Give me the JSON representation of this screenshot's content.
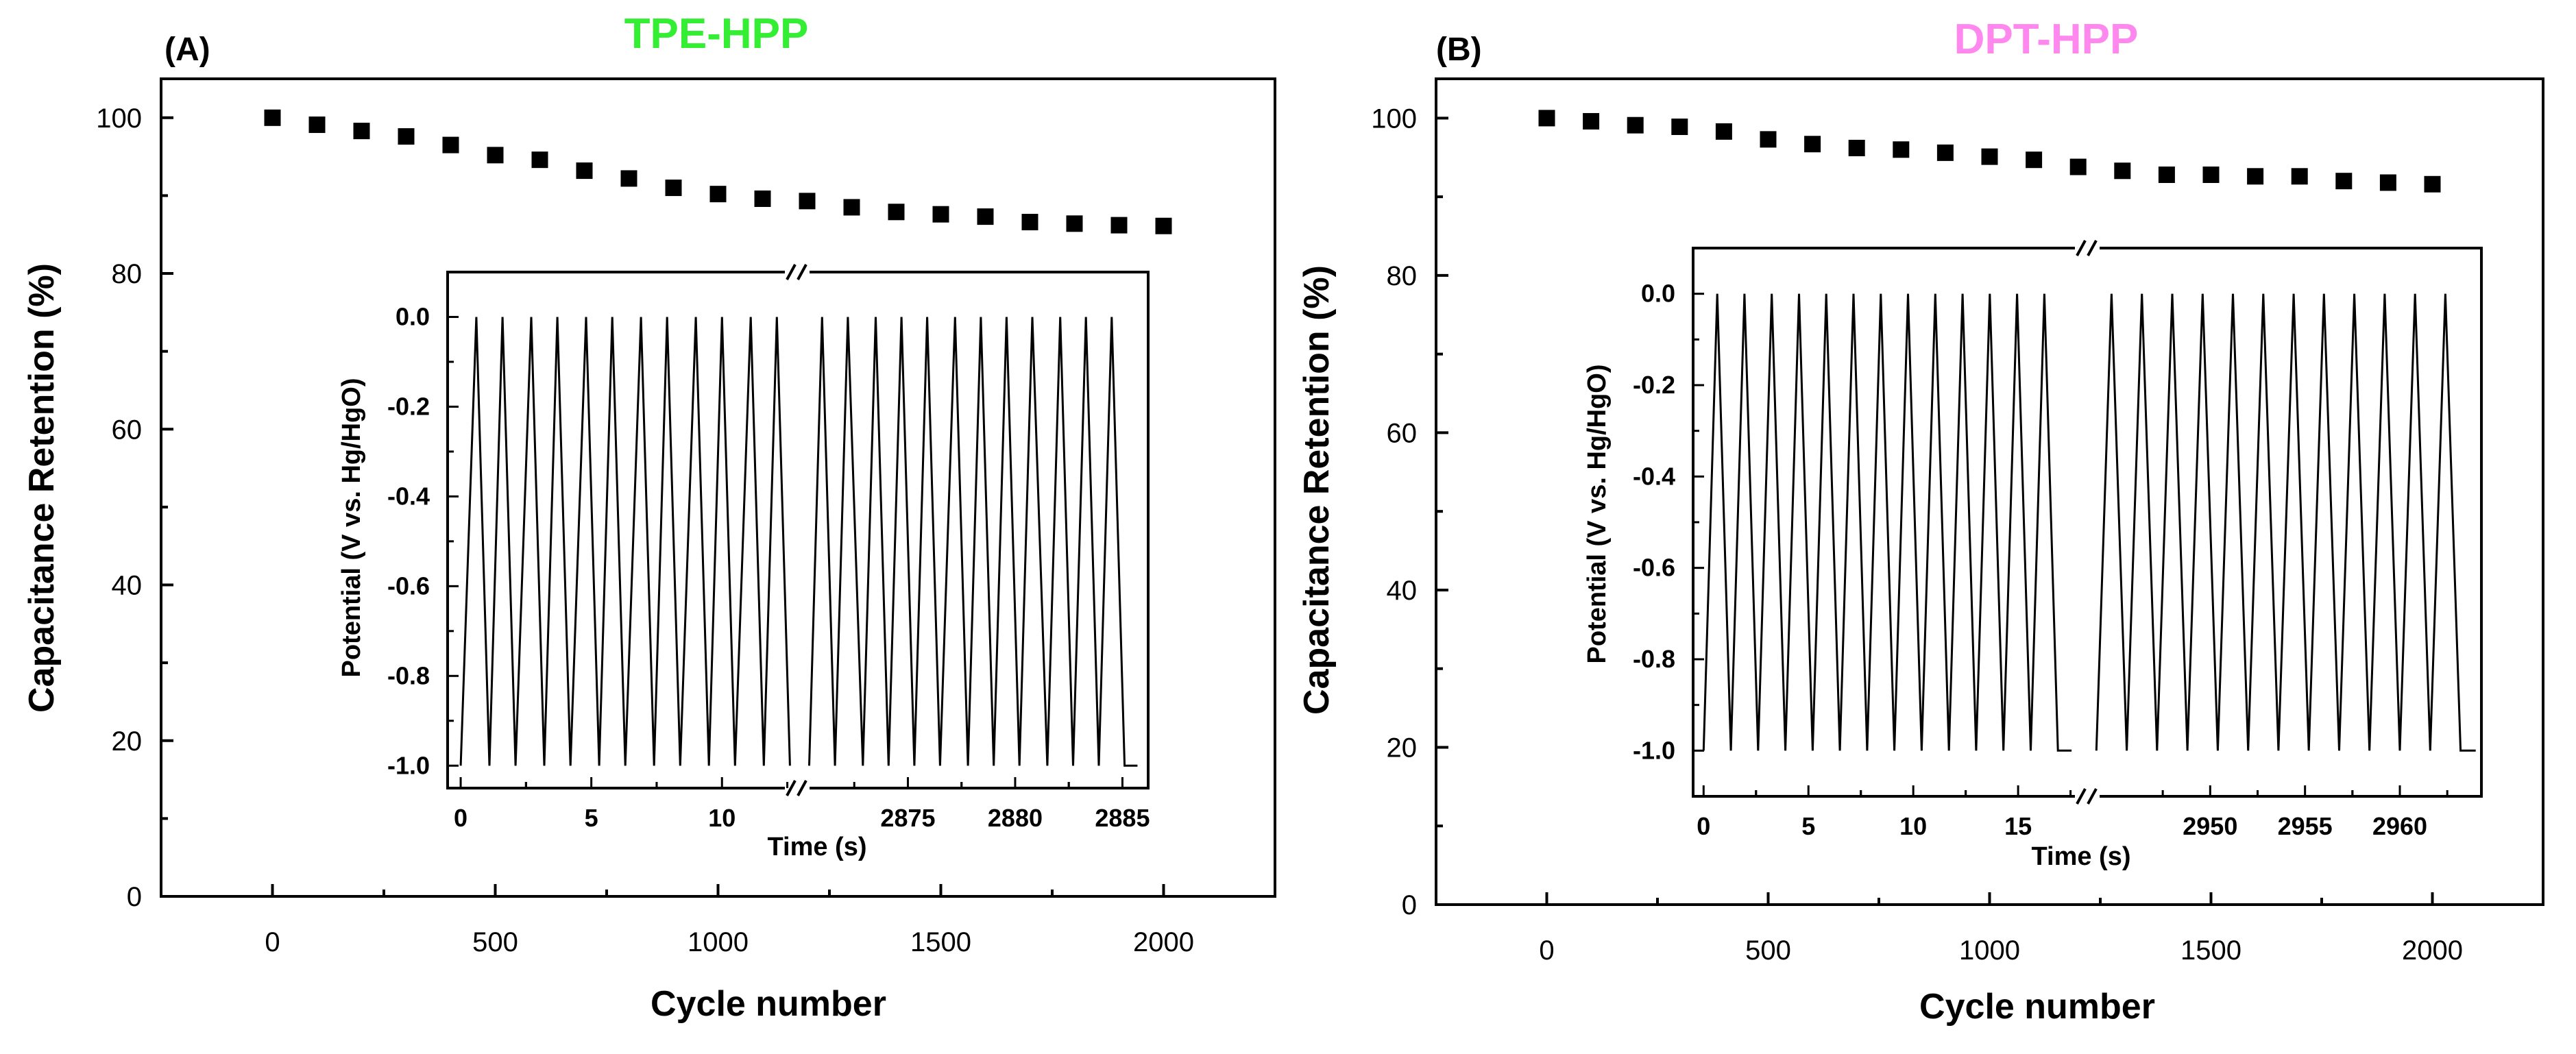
{
  "chart_data": [
    {
      "panel_label": "(A)",
      "type": "scatter",
      "title": "TPE-HPP",
      "title_color": "#33ee33",
      "xlabel": "Cycle number",
      "ylabel": "Capacitance Retention (%)",
      "xlim": [
        -250,
        2250
      ],
      "ylim": [
        0,
        105
      ],
      "xticks": [
        0,
        500,
        1000,
        1500,
        2000
      ],
      "xtick_labels": [
        "0",
        "500",
        "1000",
        "1500",
        "2000"
      ],
      "yticks": [
        0,
        20,
        40,
        60,
        80,
        100
      ],
      "ytick_labels": [
        "0",
        "20",
        "40",
        "60",
        "80",
        "100"
      ],
      "marker_color": "#000000",
      "x": [
        0,
        100,
        200,
        300,
        400,
        500,
        600,
        700,
        800,
        900,
        1000,
        1100,
        1200,
        1300,
        1400,
        1500,
        1600,
        1700,
        1800,
        1900,
        2000
      ],
      "y": [
        100.0,
        99.1,
        98.3,
        97.6,
        96.5,
        95.2,
        94.6,
        93.2,
        92.2,
        91.0,
        90.2,
        89.6,
        89.3,
        88.5,
        87.9,
        87.6,
        87.3,
        86.6,
        86.4,
        86.2,
        86.1
      ],
      "inset": {
        "type": "line",
        "xlabel": "Time (s)",
        "ylabel": "Potential (V vs. Hg/HgO)",
        "ylim": [
          -1.05,
          0.1
        ],
        "yticks": [
          0.0,
          -0.2,
          -0.4,
          -0.6,
          -0.8,
          -1.0
        ],
        "ytick_labels": [
          "0.0",
          "-0.2",
          "-0.4",
          "-0.6",
          "-0.8",
          "-1.0"
        ],
        "break_symbol": "//",
        "segments": [
          {
            "xlim": [
              -0.5,
              12.8
            ],
            "xticks": [
              0,
              5,
              10
            ],
            "xtick_labels": [
              "0",
              "5",
              "10"
            ],
            "x": [
              0,
              0.6,
              1.1,
              1.6,
              2.1,
              2.7,
              3.2,
              3.7,
              4.2,
              4.8,
              5.3,
              5.8,
              6.3,
              6.9,
              7.4,
              7.9,
              8.4,
              9.0,
              9.5,
              10.0,
              10.5,
              11.1,
              11.6,
              12.1,
              12.6
            ],
            "y": [
              -1.0,
              0.0,
              -1.0,
              0.0,
              -1.0,
              0.0,
              -1.0,
              0.0,
              -1.0,
              0.0,
              -1.0,
              0.0,
              -1.0,
              0.0,
              -1.0,
              0.0,
              -1.0,
              0.0,
              -1.0,
              0.0,
              -1.0,
              0.0,
              -1.0,
              0.0,
              -1.0
            ]
          },
          {
            "xlim": [
              2870.0,
              2886.2
            ],
            "xticks": [
              2875,
              2880,
              2885
            ],
            "xtick_labels": [
              "2875",
              "2880",
              "2885"
            ],
            "x": [
              2870.4,
              2871.0,
              2871.6,
              2872.2,
              2872.9,
              2873.5,
              2874.1,
              2874.7,
              2875.3,
              2875.9,
              2876.5,
              2877.2,
              2877.8,
              2878.4,
              2879.0,
              2879.6,
              2880.2,
              2880.8,
              2881.5,
              2882.1,
              2882.7,
              2883.3,
              2883.9,
              2884.5,
              2885.1,
              2885.7
            ],
            "y": [
              -1.0,
              0.0,
              -1.0,
              0.0,
              -1.0,
              0.0,
              -1.0,
              0.0,
              -1.0,
              0.0,
              -1.0,
              0.0,
              -1.0,
              0.0,
              -1.0,
              0.0,
              -1.0,
              0.0,
              -1.0,
              0.0,
              -1.0,
              0.0,
              -1.0,
              0.0,
              -1.0,
              -1.0
            ]
          }
        ]
      }
    },
    {
      "panel_label": "(B)",
      "type": "scatter",
      "title": "DPT-HPP",
      "title_color": "#ff88ee",
      "xlabel": "Cycle number",
      "ylabel": "Capacitance Retention (%)",
      "xlim": [
        -250,
        2250
      ],
      "ylim": [
        0,
        105
      ],
      "xticks": [
        0,
        500,
        1000,
        1500,
        2000
      ],
      "xtick_labels": [
        "0",
        "500",
        "1000",
        "1500",
        "2000"
      ],
      "yticks": [
        0,
        20,
        40,
        60,
        80,
        100
      ],
      "ytick_labels": [
        "0",
        "20",
        "40",
        "60",
        "80",
        "100"
      ],
      "marker_color": "#000000",
      "x": [
        0,
        100,
        200,
        300,
        400,
        500,
        600,
        700,
        800,
        900,
        1000,
        1100,
        1200,
        1300,
        1400,
        1500,
        1600,
        1700,
        1800,
        1900,
        2000
      ],
      "y": [
        100.0,
        99.6,
        99.1,
        98.9,
        98.3,
        97.3,
        96.7,
        96.2,
        96.0,
        95.6,
        95.1,
        94.7,
        93.8,
        93.3,
        92.8,
        92.8,
        92.6,
        92.6,
        92.0,
        91.8,
        91.6
      ],
      "inset": {
        "type": "line",
        "xlabel": "Time (s)",
        "ylabel": "Potential (V vs. Hg/HgO)",
        "ylim": [
          -1.1,
          0.1
        ],
        "yticks": [
          0.0,
          -0.2,
          -0.4,
          -0.6,
          -0.8,
          -1.0
        ],
        "ytick_labels": [
          "0.0",
          "-0.2",
          "-0.4",
          "-0.6",
          "-0.8",
          "-1.0"
        ],
        "break_symbol": "//",
        "segments": [
          {
            "xlim": [
              -0.5,
              18.2
            ],
            "xticks": [
              0,
              5,
              10,
              15
            ],
            "xtick_labels": [
              "0",
              "5",
              "10",
              "15"
            ],
            "x": [
              0,
              0.65,
              1.3,
              1.95,
              2.6,
              3.25,
              3.9,
              4.55,
              5.2,
              5.85,
              6.5,
              7.15,
              7.8,
              8.45,
              9.1,
              9.75,
              10.4,
              11.05,
              11.7,
              12.35,
              13.0,
              13.65,
              14.3,
              14.95,
              15.6,
              16.25,
              16.9,
              17.55
            ],
            "y": [
              -1.0,
              0.0,
              -1.0,
              0.0,
              -1.0,
              0.0,
              -1.0,
              0.0,
              -1.0,
              0.0,
              -1.0,
              0.0,
              -1.0,
              0.0,
              -1.0,
              0.0,
              -1.0,
              0.0,
              -1.0,
              0.0,
              -1.0,
              0.0,
              -1.0,
              0.0,
              -1.0,
              0.0,
              -1.0,
              -1.0
            ]
          },
          {
            "xlim": [
              2943.7,
              2964.3
            ],
            "xticks": [
              2950,
              2955,
              2960
            ],
            "xtick_labels": [
              "2950",
              "2955",
              "2960"
            ],
            "x": [
              2944.0,
              2944.8,
              2945.6,
              2946.4,
              2947.2,
              2948.0,
              2948.8,
              2949.6,
              2950.4,
              2951.2,
              2952.0,
              2952.8,
              2953.6,
              2954.4,
              2955.2,
              2956.0,
              2956.8,
              2957.6,
              2958.4,
              2959.2,
              2960.0,
              2960.8,
              2961.6,
              2962.4,
              2963.2,
              2964.0
            ],
            "y": [
              -1.0,
              0.0,
              -1.0,
              0.0,
              -1.0,
              0.0,
              -1.0,
              0.0,
              -1.0,
              0.0,
              -1.0,
              0.0,
              -1.0,
              0.0,
              -1.0,
              0.0,
              -1.0,
              0.0,
              -1.0,
              0.0,
              -1.0,
              0.0,
              -1.0,
              0.0,
              -1.0,
              -1.0
            ]
          }
        ]
      }
    }
  ]
}
